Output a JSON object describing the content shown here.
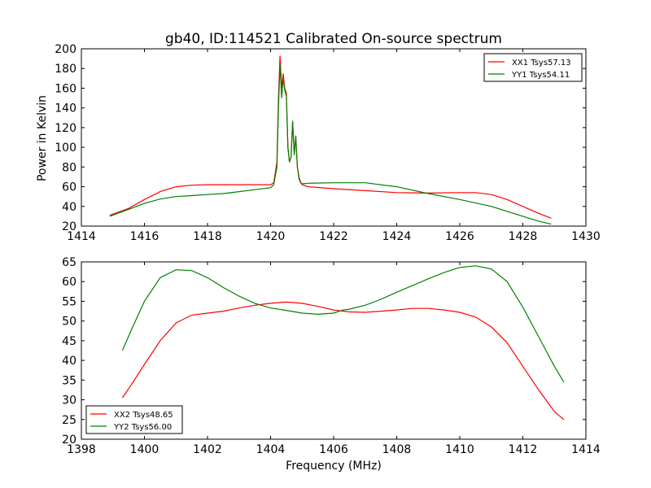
{
  "chart_data": [
    {
      "type": "line",
      "title": "gb40, ID:114521 Calibrated On-source spectrum",
      "xlabel": "",
      "ylabel": "Power in Kelvin",
      "xlim": [
        1414,
        1430
      ],
      "ylim": [
        20,
        200
      ],
      "xticks": [
        1414,
        1416,
        1418,
        1420,
        1422,
        1424,
        1426,
        1428,
        1430
      ],
      "yticks": [
        20,
        40,
        60,
        80,
        100,
        120,
        140,
        160,
        180,
        200
      ],
      "grid": false,
      "legend": "top-right",
      "series": [
        {
          "name": "XX1 Tsys57.13",
          "color": "#ff0000",
          "x": [
            1414.9,
            1415.5,
            1416.0,
            1416.5,
            1417.0,
            1417.5,
            1418.0,
            1418.5,
            1419.0,
            1419.5,
            1420.0,
            1420.1,
            1420.2,
            1420.25,
            1420.3,
            1420.35,
            1420.4,
            1420.45,
            1420.5,
            1420.55,
            1420.6,
            1420.65,
            1420.7,
            1420.75,
            1420.8,
            1420.85,
            1420.9,
            1420.95,
            1421.0,
            1421.2,
            1422.0,
            1423.0,
            1424.0,
            1425.0,
            1426.0,
            1426.5,
            1427.0,
            1427.5,
            1428.0,
            1428.5,
            1428.9
          ],
          "y": [
            31,
            38,
            47,
            55,
            60,
            61.5,
            62,
            62,
            62,
            62,
            62,
            64,
            85,
            150,
            193,
            160,
            175,
            160,
            155,
            100,
            85,
            90,
            125,
            95,
            110,
            80,
            70,
            65,
            62,
            60,
            58,
            56,
            54,
            53.5,
            54,
            54,
            52,
            47,
            40,
            33,
            28
          ]
        },
        {
          "name": "YY1 Tsys54.11",
          "color": "#008000",
          "x": [
            1414.9,
            1415.5,
            1416.0,
            1416.5,
            1417.0,
            1417.5,
            1418.0,
            1418.5,
            1419.0,
            1419.5,
            1420.0,
            1420.1,
            1420.2,
            1420.25,
            1420.3,
            1420.35,
            1420.4,
            1420.45,
            1420.5,
            1420.55,
            1420.6,
            1420.65,
            1420.7,
            1420.75,
            1420.8,
            1420.85,
            1420.9,
            1420.95,
            1421.0,
            1421.2,
            1422.0,
            1423.0,
            1424.0,
            1425.0,
            1426.0,
            1427.0,
            1427.5,
            1428.0,
            1428.5,
            1428.9
          ],
          "y": [
            30,
            37,
            43,
            47.5,
            50,
            51,
            52,
            53,
            55,
            57,
            59,
            62,
            80,
            140,
            185,
            150,
            170,
            158,
            152,
            100,
            85,
            90,
            127,
            92,
            112,
            80,
            68,
            64,
            63,
            63.5,
            64,
            64,
            60,
            53,
            47,
            40,
            35,
            30,
            25,
            22
          ]
        }
      ]
    },
    {
      "type": "line",
      "title": "",
      "xlabel": "Frequency (MHz)",
      "ylabel": "",
      "xlim": [
        1398,
        1414
      ],
      "ylim": [
        20,
        65
      ],
      "xticks": [
        1398,
        1400,
        1402,
        1404,
        1406,
        1408,
        1410,
        1412,
        1414
      ],
      "yticks": [
        20,
        25,
        30,
        35,
        40,
        45,
        50,
        55,
        60,
        65
      ],
      "grid": false,
      "legend": "bottom-left",
      "series": [
        {
          "name": "XX2 Tsys48.65",
          "color": "#ff0000",
          "x": [
            1399.3,
            1399.6,
            1400.0,
            1400.5,
            1401.0,
            1401.5,
            1402.0,
            1402.5,
            1403.0,
            1403.5,
            1404.0,
            1404.5,
            1405.0,
            1405.5,
            1406.0,
            1406.5,
            1407.0,
            1407.5,
            1408.0,
            1408.5,
            1409.0,
            1409.5,
            1410.0,
            1410.5,
            1411.0,
            1411.5,
            1412.0,
            1412.5,
            1413.0,
            1413.3
          ],
          "y": [
            30.5,
            34,
            39,
            45,
            49.5,
            51.5,
            52,
            52.5,
            53.3,
            54,
            54.5,
            54.8,
            54.5,
            53.7,
            52.8,
            52.3,
            52.2,
            52.5,
            52.8,
            53.2,
            53.2,
            52.8,
            52.2,
            51,
            48.5,
            44.5,
            38.5,
            32.5,
            27,
            25
          ]
        },
        {
          "name": "YY2 Tsys56.00",
          "color": "#008000",
          "x": [
            1399.3,
            1399.6,
            1400.0,
            1400.5,
            1401.0,
            1401.5,
            1402.0,
            1402.5,
            1403.0,
            1403.5,
            1404.0,
            1404.5,
            1405.0,
            1405.5,
            1406.0,
            1406.3,
            1406.5,
            1407.0,
            1407.5,
            1408.0,
            1408.5,
            1409.0,
            1409.5,
            1410.0,
            1410.5,
            1411.0,
            1411.5,
            1412.0,
            1412.5,
            1413.0,
            1413.3
          ],
          "y": [
            42.5,
            48,
            55,
            61,
            63,
            62.8,
            61,
            58.5,
            56.3,
            54.5,
            53.3,
            52.7,
            52,
            51.7,
            52,
            52.8,
            53,
            54,
            55.5,
            57.3,
            59,
            60.7,
            62.3,
            63.6,
            64,
            63.2,
            60,
            53.5,
            46,
            38.5,
            34.5
          ]
        }
      ]
    }
  ]
}
